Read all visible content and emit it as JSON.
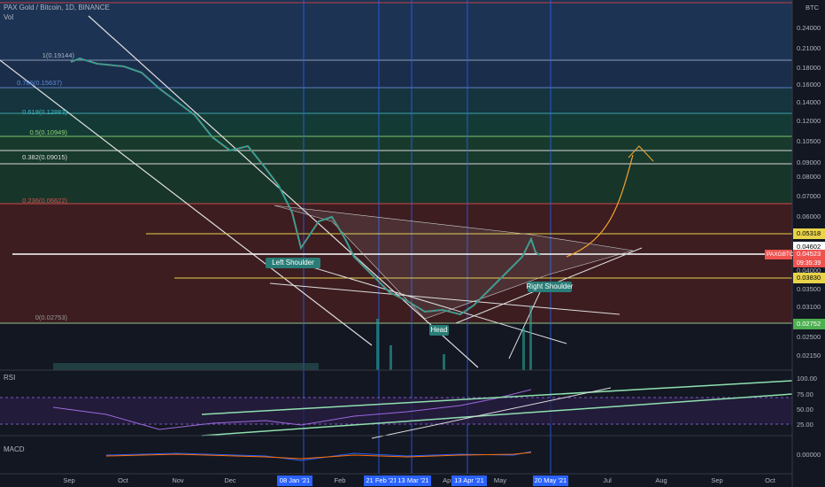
{
  "header": {
    "symbol": "PAX Gold / Bitcoin, 1D, BINANCE",
    "volume": "Vol",
    "currency": "BTC"
  },
  "fib_levels": [
    "1(0.19144)",
    "0.786(0.15637)",
    "0.618(0.12883)",
    "0.5(0.10949)",
    "0.382(0.09015)",
    "0.236(0.06622)",
    "0(0.02753)"
  ],
  "price_axis": [
    "0.24000",
    "0.21000",
    "0.18000",
    "0.16000",
    "0.14000",
    "0.12000",
    "0.10500",
    "0.09000",
    "0.08000",
    "0.07000",
    "0.06000",
    "0.04000",
    "0.03500",
    "0.03100",
    "0.02500",
    "0.02150"
  ],
  "price_tags": {
    "level_high": "0.05318",
    "level_mid": "0.04602",
    "ticker": "PAXGBTC",
    "last": "0.04523",
    "countdown": "09:35:39",
    "level_low": "0.03830",
    "fib_zero": "0.02752"
  },
  "annotations": {
    "left": "Left Shoulder",
    "head": "Head",
    "right": "Right Shoulder"
  },
  "rsi": {
    "title": "RSI",
    "ticks": [
      "100.00",
      "75.00",
      "50.00",
      "25.00"
    ]
  },
  "macd": {
    "title": "MACD",
    "ticks": [
      "0.00000"
    ]
  },
  "time_axis": [
    "Sep",
    "Oct",
    "Nov",
    "Dec",
    "08 Jan '21",
    "Feb",
    "21 Feb '21",
    "13 Mar '21",
    "Apr",
    "13 Apr '21",
    "May",
    "20 May '21",
    "Jul",
    "Aug",
    "Sep",
    "Oct"
  ]
}
